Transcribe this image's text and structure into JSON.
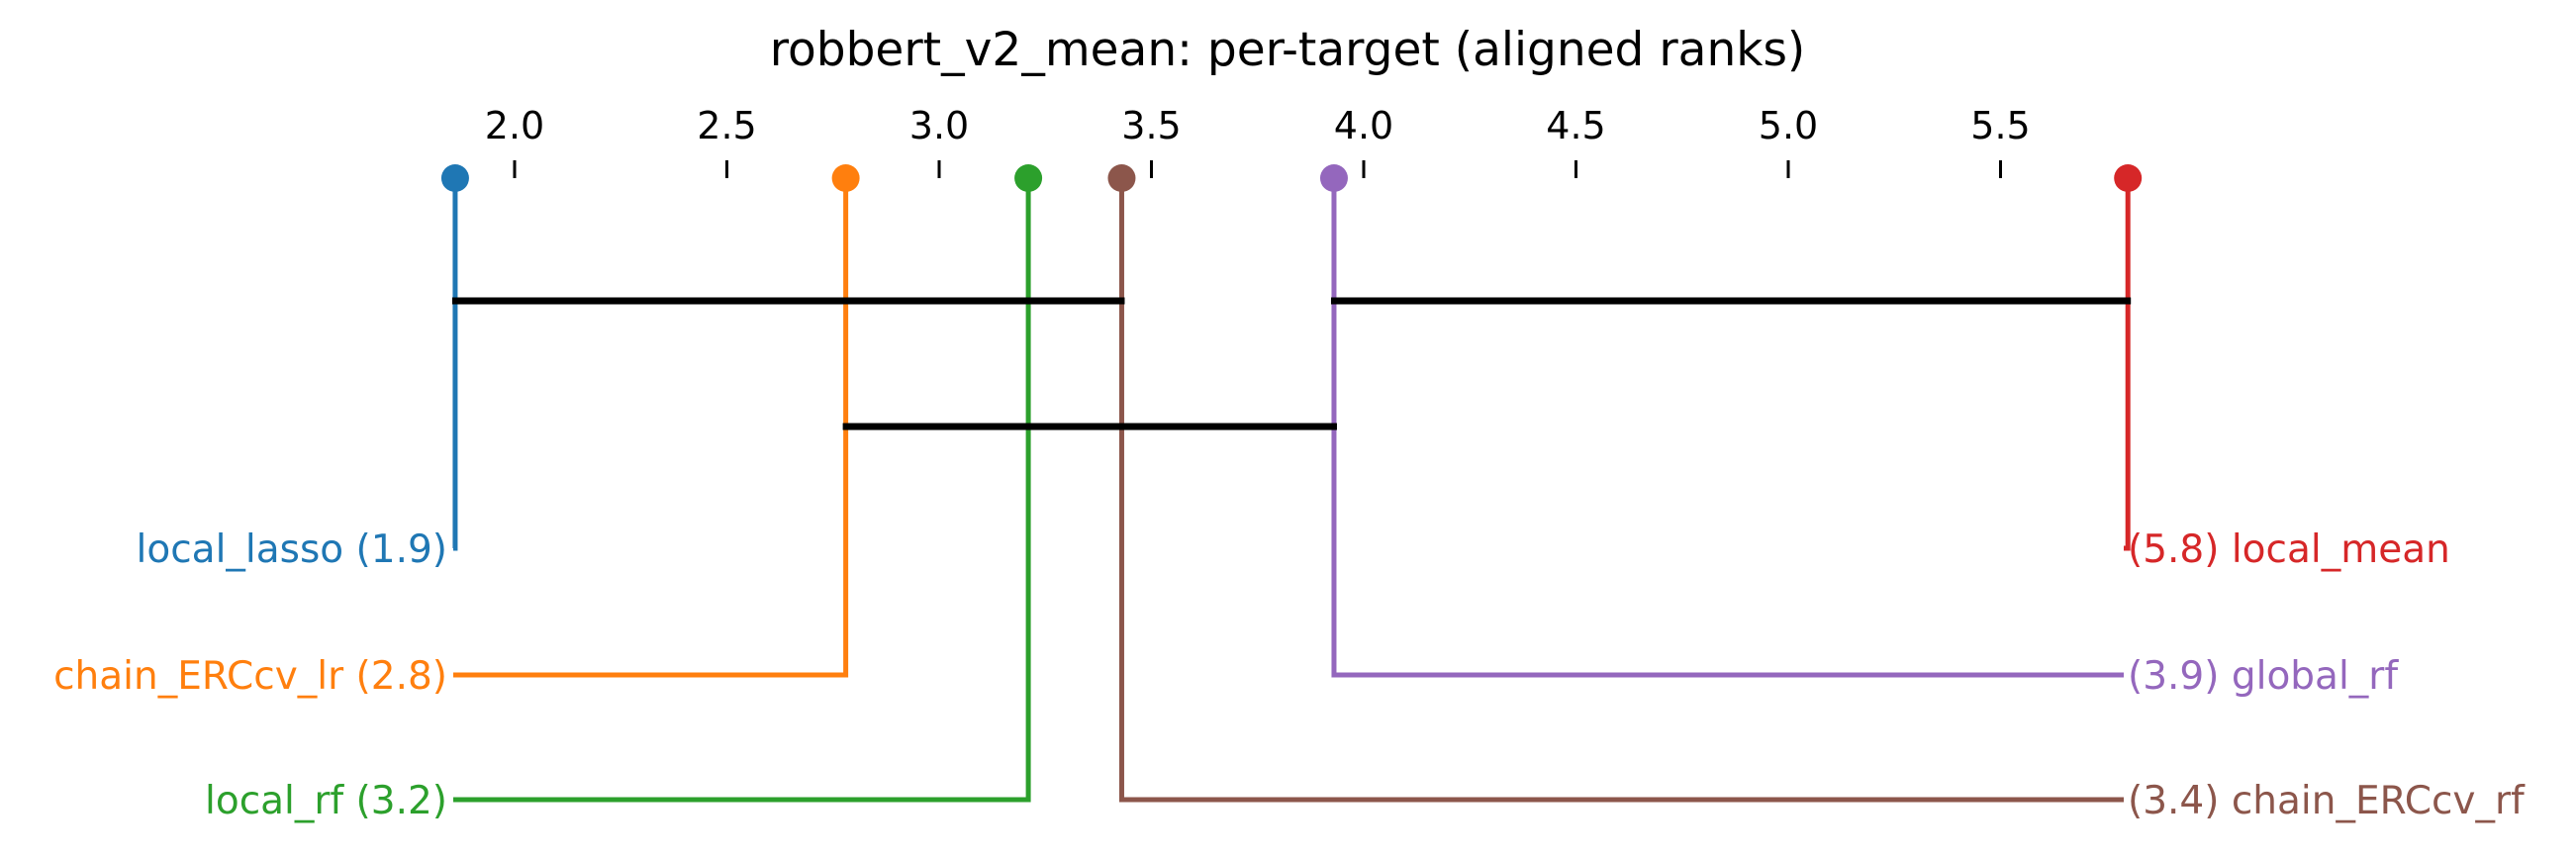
{
  "chart_data": {
    "type": "critical-difference",
    "title": "robbert_v2_mean: per-target (aligned ranks)",
    "axis": {
      "range": [
        1.86,
        5.8
      ],
      "ticks": [
        2.0,
        2.5,
        3.0,
        3.5,
        4.0,
        4.5,
        5.0,
        5.5
      ],
      "tick_labels": [
        "2.0",
        "2.5",
        "3.0",
        "3.5",
        "4.0",
        "4.5",
        "5.0",
        "5.5"
      ]
    },
    "methods": [
      {
        "name": "local_lasso",
        "rank": 1.86,
        "label": "local_lasso (1.9)",
        "color": "#1f77b4",
        "side": "left",
        "slot": 0
      },
      {
        "name": "chain_ERCcv_lr",
        "rank": 2.78,
        "label": "chain_ERCcv_lr (2.8)",
        "color": "#ff7f0e",
        "side": "left",
        "slot": 1
      },
      {
        "name": "local_rf",
        "rank": 3.21,
        "label": "local_rf (3.2)",
        "color": "#2ca02c",
        "side": "left",
        "slot": 2
      },
      {
        "name": "chain_ERCcv_rf",
        "rank": 3.43,
        "label": "(3.4) chain_ERCcv_rf",
        "color": "#8c564b",
        "side": "right",
        "slot": 2
      },
      {
        "name": "global_rf",
        "rank": 3.93,
        "label": "(3.9) global_rf",
        "color": "#9467bd",
        "side": "right",
        "slot": 1
      },
      {
        "name": "local_mean",
        "rank": 5.8,
        "label": "(5.8) local_mean",
        "color": "#d62728",
        "side": "right",
        "slot": 0
      }
    ],
    "cliques": [
      {
        "from": 1.86,
        "to": 3.43,
        "level": 0
      },
      {
        "from": 3.93,
        "to": 5.8,
        "level": 0
      },
      {
        "from": 2.78,
        "to": 3.93,
        "level": 1
      }
    ]
  }
}
